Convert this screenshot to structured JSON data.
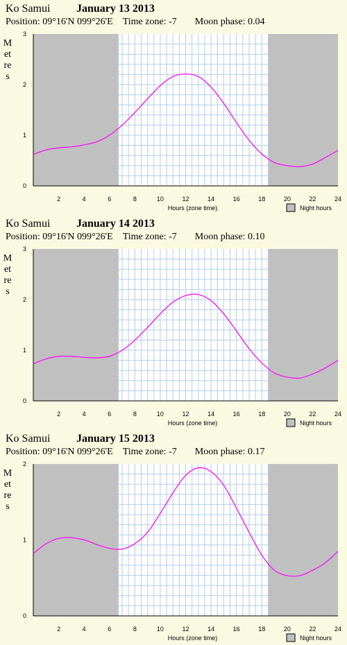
{
  "chart_data": [
    {
      "type": "line",
      "place": "Ko Samui",
      "title": "January 13 2013",
      "position_label": "Position:",
      "position": "09°16'N 099°26'E",
      "timezone_label": "Time zone:",
      "timezone": "-7",
      "moon_label": "Moon phase:",
      "moon_phase": "0.04",
      "ylabel": "Metres",
      "xlabel": "Hours (zone time)",
      "legend": "Night hours",
      "xlim": [
        0,
        24
      ],
      "ylim": [
        0,
        3
      ],
      "xticks": [
        2,
        4,
        6,
        8,
        10,
        12,
        14,
        16,
        18,
        20,
        22,
        24
      ],
      "yticks": [
        0,
        1,
        2,
        3
      ],
      "night": [
        [
          0,
          6.7
        ],
        [
          18.5,
          24
        ]
      ],
      "series": [
        {
          "color": "#ff00ff",
          "x": [
            0,
            1,
            2,
            3,
            4,
            5,
            6,
            7,
            8,
            9,
            10,
            11,
            12,
            13,
            14,
            15,
            16,
            17,
            18,
            19,
            20,
            21,
            22,
            23,
            24
          ],
          "values": [
            0.62,
            0.71,
            0.75,
            0.77,
            0.81,
            0.87,
            1.0,
            1.2,
            1.45,
            1.72,
            1.98,
            2.16,
            2.21,
            2.16,
            1.95,
            1.63,
            1.25,
            0.9,
            0.63,
            0.46,
            0.4,
            0.38,
            0.43,
            0.56,
            0.7
          ]
        }
      ]
    },
    {
      "type": "line",
      "place": "Ko Samui",
      "title": "January 14 2013",
      "position_label": "Position:",
      "position": "09°16'N 099°26'E",
      "timezone_label": "Time zone:",
      "timezone": "-7",
      "moon_label": "Moon phase:",
      "moon_phase": "0.10",
      "ylabel": "Metres",
      "xlabel": "Hours (zone time)",
      "legend": "Night hours",
      "xlim": [
        0,
        24
      ],
      "ylim": [
        0,
        3
      ],
      "xticks": [
        2,
        4,
        6,
        8,
        10,
        12,
        14,
        16,
        18,
        20,
        22,
        24
      ],
      "yticks": [
        0,
        1,
        2,
        3
      ],
      "night": [
        [
          0,
          6.7
        ],
        [
          18.5,
          24
        ]
      ],
      "series": [
        {
          "color": "#ff00ff",
          "x": [
            0,
            1,
            2,
            3,
            4,
            5,
            6,
            7,
            8,
            9,
            10,
            11,
            12,
            13,
            14,
            15,
            16,
            17,
            18,
            19,
            20,
            21,
            22,
            23,
            24
          ],
          "values": [
            0.73,
            0.83,
            0.88,
            0.88,
            0.86,
            0.85,
            0.88,
            1.0,
            1.2,
            1.45,
            1.72,
            1.95,
            2.08,
            2.1,
            1.98,
            1.72,
            1.38,
            1.03,
            0.75,
            0.55,
            0.47,
            0.45,
            0.53,
            0.65,
            0.8
          ]
        }
      ]
    },
    {
      "type": "line",
      "place": "Ko Samui",
      "title": "January 15 2013",
      "position_label": "Position:",
      "position": "09°16'N 099°26'E",
      "timezone_label": "Time zone:",
      "timezone": "-7",
      "moon_label": "Moon phase:",
      "moon_phase": "0.17",
      "ylabel": "Metres",
      "xlabel": "Hours (zone time)",
      "legend": "Night hours",
      "xlim": [
        0,
        24
      ],
      "ylim": [
        0,
        2
      ],
      "xticks": [
        2,
        4,
        6,
        8,
        10,
        12,
        14,
        16,
        18,
        20,
        22,
        24
      ],
      "yticks": [
        0,
        1,
        2
      ],
      "night": [
        [
          0,
          6.7
        ],
        [
          18.5,
          24
        ]
      ],
      "series": [
        {
          "color": "#ff00ff",
          "x": [
            0,
            1,
            2,
            3,
            4,
            5,
            6,
            7,
            8,
            9,
            10,
            11,
            12,
            13,
            14,
            15,
            16,
            17,
            18,
            19,
            20,
            21,
            22,
            23,
            24
          ],
          "values": [
            0.82,
            0.95,
            1.02,
            1.03,
            1.0,
            0.94,
            0.89,
            0.88,
            0.95,
            1.1,
            1.35,
            1.62,
            1.85,
            1.95,
            1.9,
            1.72,
            1.42,
            1.1,
            0.8,
            0.6,
            0.53,
            0.53,
            0.6,
            0.7,
            0.85
          ]
        }
      ]
    }
  ]
}
